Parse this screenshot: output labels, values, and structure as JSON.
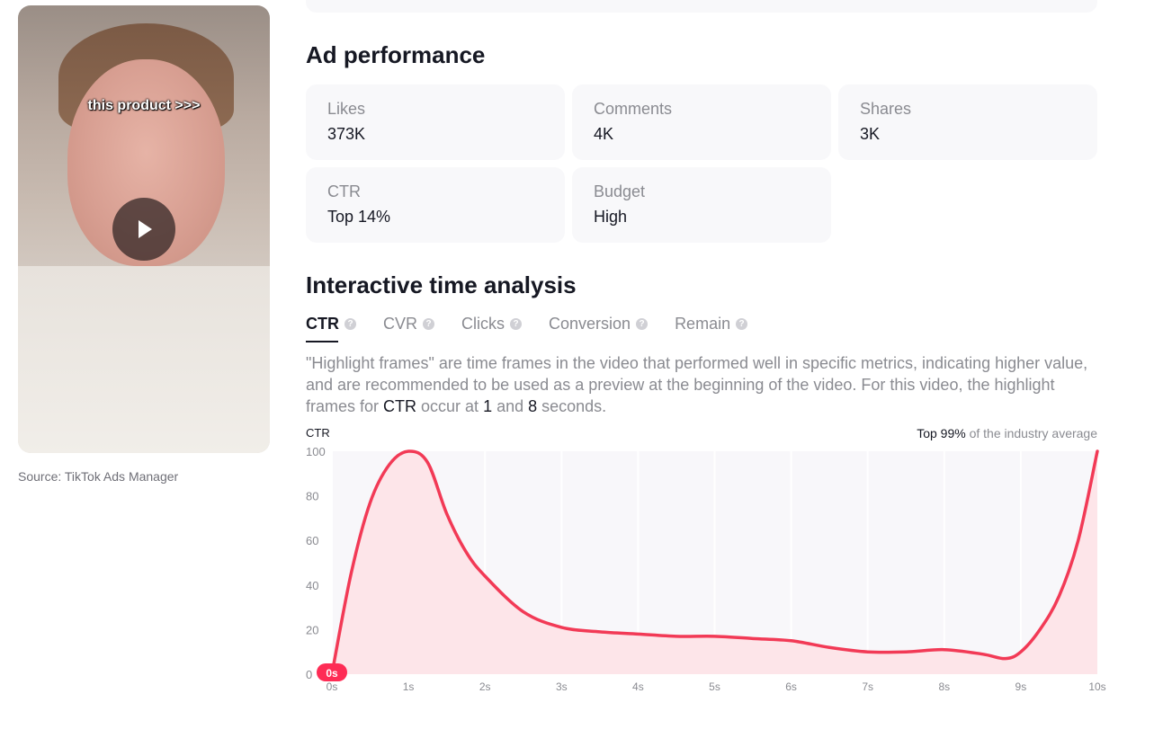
{
  "video": {
    "caption": "this product >>>",
    "source": "Source: TikTok Ads Manager"
  },
  "ad_performance": {
    "title": "Ad performance",
    "metrics": [
      {
        "label": "Likes",
        "value": "373K"
      },
      {
        "label": "Comments",
        "value": "4K"
      },
      {
        "label": "Shares",
        "value": "3K"
      },
      {
        "label": "CTR",
        "value": "Top 14%"
      },
      {
        "label": "Budget",
        "value": "High"
      }
    ]
  },
  "time_analysis": {
    "title": "Interactive time analysis",
    "tabs": [
      {
        "label": "CTR",
        "active": true
      },
      {
        "label": "CVR",
        "active": false
      },
      {
        "label": "Clicks",
        "active": false
      },
      {
        "label": "Conversion",
        "active": false
      },
      {
        "label": "Remain",
        "active": false
      }
    ],
    "description": {
      "part1": "\"Highlight frames\" are time frames in the video that performed well in specific metrics, indicating higher value, and are recommended to be used as a preview at the beginning of the video. For this video, the highlight frames for ",
      "metric": "CTR",
      "part2": " occur at ",
      "frame1": "1",
      "part3": " and ",
      "frame2": "8",
      "part4": " seconds."
    },
    "chart_ylabel": "CTR",
    "note_strong": "Top 99%",
    "note_rest": " of the industry average",
    "current_marker": "0s"
  },
  "colors": {
    "accent": "#fe2c55",
    "line": "#f23a56",
    "area": "#fde5e9",
    "plot_bg": "#f8f7fa"
  },
  "chart_data": {
    "type": "area",
    "x": [
      0,
      0.25,
      0.5,
      0.75,
      1.0,
      1.25,
      1.5,
      1.75,
      2.0,
      2.5,
      3.0,
      3.5,
      4.0,
      4.5,
      5.0,
      5.5,
      6.0,
      6.5,
      7.0,
      7.5,
      8.0,
      8.5,
      8.8,
      9.0,
      9.25,
      9.5,
      9.75,
      10.0
    ],
    "values": [
      0,
      45,
      77,
      94,
      100,
      95,
      72,
      55,
      44,
      28,
      21,
      19,
      18,
      17,
      17,
      16,
      15,
      12,
      10,
      10,
      11,
      9,
      7,
      10,
      20,
      35,
      60,
      100
    ],
    "xticks": [
      "0s",
      "1s",
      "2s",
      "3s",
      "4s",
      "5s",
      "6s",
      "7s",
      "8s",
      "9s",
      "10s"
    ],
    "yticks": [
      "0",
      "20",
      "40",
      "60",
      "80",
      "100"
    ],
    "ylabel": "CTR",
    "xlim": [
      0,
      10
    ],
    "ylim": [
      0,
      100
    ],
    "grid": "vertical"
  }
}
